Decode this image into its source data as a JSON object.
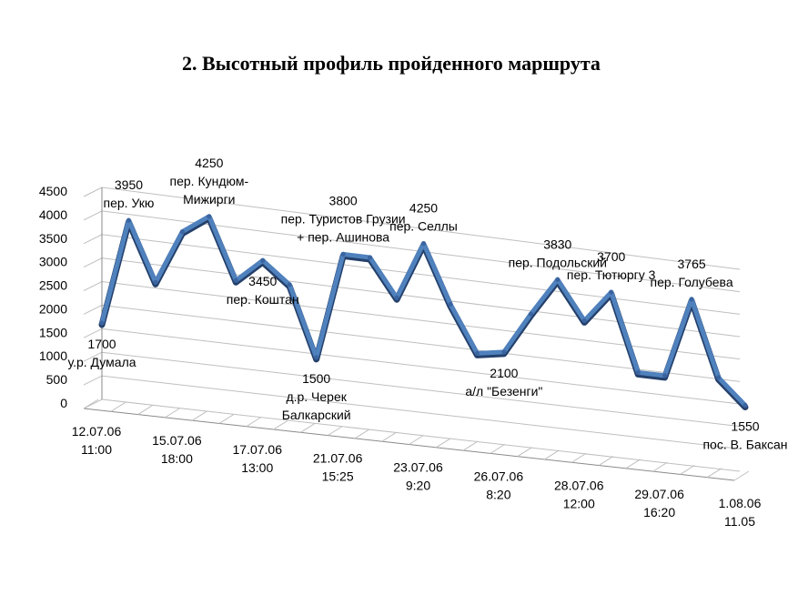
{
  "chart_data": {
    "type": "line",
    "title": "2. Высотный профиль  пройденного маршрута",
    "xlabel": "",
    "ylabel": "",
    "ylim": [
      0,
      4500
    ],
    "yticks": [
      "0",
      "500",
      "1000",
      "1500",
      "2000",
      "2500",
      "3000",
      "3500",
      "4000",
      "4500"
    ],
    "grid": true,
    "legend": "none",
    "line_color": "#4f81bd",
    "xticks": [
      {
        "index": 0,
        "label": [
          "12.07.06",
          "11:00"
        ]
      },
      {
        "index": 3,
        "label": [
          "15.07.06",
          "18:00"
        ]
      },
      {
        "index": 6,
        "label": [
          "17.07.06",
          "13:00"
        ]
      },
      {
        "index": 9,
        "label": [
          "21.07.06",
          "15:25"
        ]
      },
      {
        "index": 12,
        "label": [
          "23.07.06",
          "9:20"
        ]
      },
      {
        "index": 15,
        "label": [
          "26.07.06",
          "8:20"
        ]
      },
      {
        "index": 18,
        "label": [
          "28.07.06",
          "12:00"
        ]
      },
      {
        "index": 21,
        "label": [
          "29.07.06",
          "16:20"
        ]
      },
      {
        "index": 24,
        "label": [
          "1.08.06",
          "11.05"
        ]
      }
    ],
    "values": [
      1700,
      3950,
      2700,
      3850,
      4250,
      2950,
      3450,
      3000,
      1500,
      3800,
      3800,
      3000,
      4250,
      3000,
      2000,
      2100,
      3000,
      3830,
      3000,
      3700,
      2000,
      2000,
      3765,
      2100,
      1550
    ],
    "annotations": [
      {
        "index": 0,
        "lines": [
          "1700",
          "у.р. Думала"
        ],
        "pos": "below"
      },
      {
        "index": 1,
        "lines": [
          "3950",
          "пер. Укю"
        ],
        "pos": "above"
      },
      {
        "index": 4,
        "lines": [
          "4250",
          "пер. Кундюм-",
          "Мижирги"
        ],
        "pos": "above"
      },
      {
        "index": 6,
        "lines": [
          "3450",
          "пер. Коштан"
        ],
        "pos": "below"
      },
      {
        "index": 8,
        "lines": [
          "1500",
          "д.р. Черек",
          "Балкарский"
        ],
        "pos": "below"
      },
      {
        "index": 9,
        "lines": [
          "3800",
          "пер. Туристов Грузии",
          "+ пер. Ашинова"
        ],
        "pos": "above"
      },
      {
        "index": 12,
        "lines": [
          "4250",
          "пер. Селлы"
        ],
        "pos": "above"
      },
      {
        "index": 15,
        "lines": [
          "2100",
          "а/л \"Безенги\""
        ],
        "pos": "below"
      },
      {
        "index": 17,
        "lines": [
          "3830",
          "пер. Подольский"
        ],
        "pos": "above"
      },
      {
        "index": 19,
        "lines": [
          "3700",
          "пер. Тютюргу 3"
        ],
        "pos": "above"
      },
      {
        "index": 22,
        "lines": [
          "3765",
          "пер. Голубева"
        ],
        "pos": "above"
      },
      {
        "index": 24,
        "lines": [
          "1550",
          "пос. В. Баксан"
        ],
        "pos": "below"
      }
    ]
  }
}
